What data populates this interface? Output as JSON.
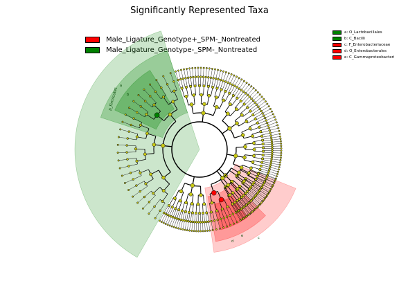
{
  "title": "Significantly Represented Taxa",
  "legend": [
    {
      "label": "Male_Ligature_Genotype+_SPM-_Nontreated",
      "color": "#ff0000"
    },
    {
      "label": "Male_Ligature_Genotype-_SPM-_Nontreated",
      "color": "#008000"
    }
  ],
  "colors": {
    "group_plus": "#ff0000",
    "group_minus": "#008000",
    "nonsignificant_node": "#c8c814",
    "edge": "#000000"
  },
  "chart_data": {
    "type": "cladogram",
    "title": "Significantly Represented Taxa",
    "taxa_key": [
      {
        "key": "a",
        "taxon": "O_Lactobacillales",
        "group": "Male_Ligature_Genotype-_SPM-_Nontreated"
      },
      {
        "key": "b",
        "taxon": "C_Bacilli",
        "group": "Male_Ligature_Genotype-_SPM-_Nontreated"
      },
      {
        "key": "c",
        "taxon": "F_Enterobacteriaceae",
        "group": "Male_Ligature_Genotype+_SPM-_Nontreated"
      },
      {
        "key": "d",
        "taxon": "O_Enterobacterales",
        "group": "Male_Ligature_Genotype+_SPM-_Nontreated"
      },
      {
        "key": "e",
        "taxon": "C_Gammaproteobacteri",
        "group": "Male_Ligature_Genotype+_SPM-_Nontreated"
      }
    ],
    "key_display": [
      "a: O_Lactobacillales",
      "b: C_Bacilli",
      "c: F_Enterobacteriaceae",
      "d: O_Enterobacterales",
      "e: C_Gammaproteobacteri"
    ],
    "highlighted_clades": [
      {
        "label": "p_Firmicutes",
        "group": "Male_Ligature_Genotype-_SPM-_Nontreated"
      },
      {
        "label": "b",
        "group": "Male_Ligature_Genotype-_SPM-_Nontreated"
      },
      {
        "label": "a",
        "group": "Male_Ligature_Genotype-_SPM-_Nontreated"
      },
      {
        "label": "e",
        "group": "Male_Ligature_Genotype+_SPM-_Nontreated"
      },
      {
        "label": "d",
        "group": "Male_Ligature_Genotype+_SPM-_Nontreated"
      },
      {
        "label": "c",
        "group": "Male_Ligature_Genotype+_SPM-_Nontreated"
      }
    ],
    "sector_labels": [
      "p_Firmicutes",
      "b",
      "a",
      "e",
      "d",
      "c"
    ]
  }
}
